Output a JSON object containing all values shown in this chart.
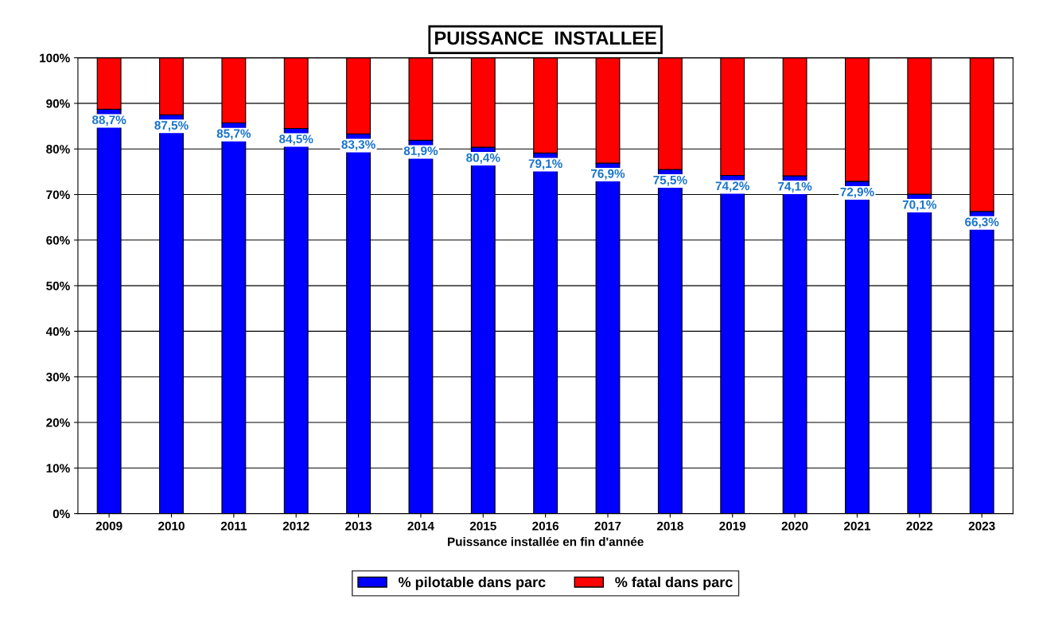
{
  "chart_data": {
    "type": "bar",
    "title": "PUISSANCE  INSTALLEE",
    "xlabel": "Puissance installée en fin d'année",
    "stacked": true,
    "categories": [
      "2009",
      "2010",
      "2011",
      "2012",
      "2013",
      "2014",
      "2015",
      "2016",
      "2017",
      "2018",
      "2019",
      "2020",
      "2021",
      "2022",
      "2023"
    ],
    "series": [
      {
        "name": "% pilotable dans parc",
        "color": "#0000ff",
        "values": [
          88.7,
          87.5,
          85.7,
          84.5,
          83.3,
          81.9,
          80.4,
          79.1,
          76.9,
          75.5,
          74.2,
          74.1,
          72.9,
          70.1,
          66.3
        ],
        "value_labels": [
          "88,7%",
          "87,5%",
          "85,7%",
          "84,5%",
          "83,3%",
          "81,9%",
          "80,4%",
          "79,1%",
          "76,9%",
          "75,5%",
          "74,2%",
          "74,1%",
          "72,9%",
          "70,1%",
          "66,3%"
        ]
      },
      {
        "name": "% fatal dans parc",
        "color": "#ff0000",
        "values": [
          11.3,
          12.5,
          14.3,
          15.5,
          16.7,
          18.1,
          19.6,
          20.9,
          23.1,
          24.5,
          25.8,
          25.9,
          27.1,
          29.9,
          33.7
        ]
      }
    ],
    "ylim": [
      0,
      100
    ],
    "yticks": [
      {
        "value": 0,
        "label": "0%"
      },
      {
        "value": 10,
        "label": "10%"
      },
      {
        "value": 20,
        "label": "20%"
      },
      {
        "value": 30,
        "label": "30%"
      },
      {
        "value": 40,
        "label": "40%"
      },
      {
        "value": 50,
        "label": "50%"
      },
      {
        "value": 60,
        "label": "60%"
      },
      {
        "value": 70,
        "label": "70%"
      },
      {
        "value": 80,
        "label": "80%"
      },
      {
        "value": 90,
        "label": "90%"
      },
      {
        "value": 100,
        "label": "100%"
      }
    ],
    "grid": "y",
    "legend": "bottom"
  }
}
